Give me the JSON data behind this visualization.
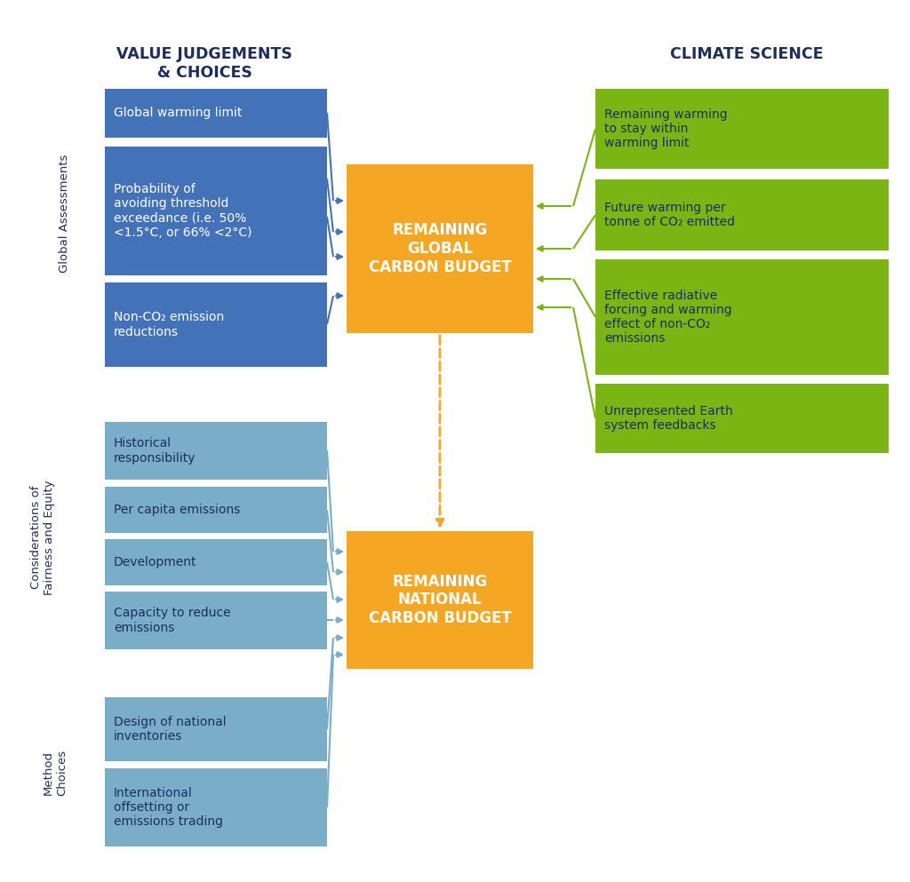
{
  "title_left": "VALUE JUDGEMENTS\n& CHOICES",
  "title_right": "CLIMATE SCIENCE",
  "title_color": "#1e2d5f",
  "bg_color": "#ffffff",
  "blue_dark_color": "#4472b8",
  "blue_light_color": "#7aaec8",
  "orange_color": "#f5a623",
  "green_color": "#7ab513",
  "text_dark": "#1e2d5f",
  "text_white": "#ffffff",
  "global_label": "Global Assessments",
  "fairness_label": "Considerations of\nFairness and Equity",
  "method_label": "Method\nChoices",
  "dark_blue_boxes": [
    "Global warming limit",
    "Probability of\navoiding threshold\nexceedance (i.e. 50%\n<1.5°C, or 66% <2°C)",
    "Non-CO₂ emission\nreductions"
  ],
  "light_blue_boxes": [
    "Historical\nresponsibility",
    "Per capita emissions",
    "Development",
    "Capacity to reduce\nemissions",
    "Design of national\ninventories",
    "International\noffsetting or\nemissions trading"
  ],
  "orange_box_top": "REMAINING\nGLOBAL\nCARBON BUDGET",
  "orange_box_bottom": "REMAINING\nNATIONAL\nCARBON BUDGET",
  "green_boxes": [
    "Remaining warming\nto stay within\nwarming limit",
    "Future warming per\ntonne of CO₂ emitted",
    "Effective radiative\nforcing and warming\neffect of non-CO₂\nemissions",
    "Unrepresented Earth\nsystem feedbacks"
  ]
}
